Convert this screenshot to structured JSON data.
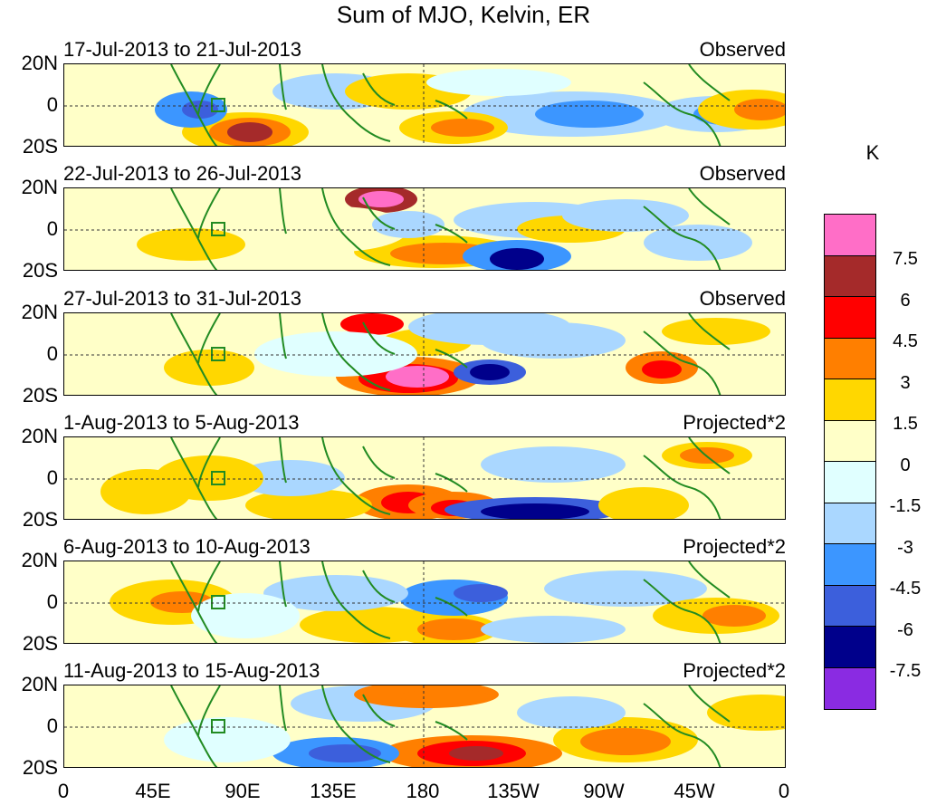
{
  "title": "Sum of MJO, Kelvin, ER",
  "panels": [
    {
      "label": "17-Jul-2013 to 21-Jul-2013",
      "tag": "Observed"
    },
    {
      "label": "22-Jul-2013 to 26-Jul-2013",
      "tag": "Observed"
    },
    {
      "label": "27-Jul-2013 to 31-Jul-2013",
      "tag": "Observed"
    },
    {
      "label": "1-Aug-2013 to 5-Aug-2013",
      "tag": "Projected*2"
    },
    {
      "label": "6-Aug-2013 to 10-Aug-2013",
      "tag": "Projected*2"
    },
    {
      "label": "11-Aug-2013 to 15-Aug-2013",
      "tag": "Projected*2"
    }
  ],
  "lat_ticks": [
    "20N",
    "0",
    "20S"
  ],
  "lon_ticks": [
    "0",
    "45E",
    "90E",
    "135E",
    "180",
    "135W",
    "90W",
    "45W",
    "0"
  ],
  "colorbar": {
    "unit": "K",
    "colors": [
      "#ff6ec7",
      "#a52a2a",
      "#ff0000",
      "#ff7f00",
      "#ffd700",
      "#ffffc8",
      "#e0ffff",
      "#aad7ff",
      "#3c96ff",
      "#3c5fdc",
      "#00008b",
      "#8a2be2"
    ],
    "labels": [
      "7.5",
      "6",
      "4.5",
      "3",
      "1.5",
      "0",
      "-1.5",
      "-3",
      "-4.5",
      "-6",
      "-7.5"
    ]
  }
}
